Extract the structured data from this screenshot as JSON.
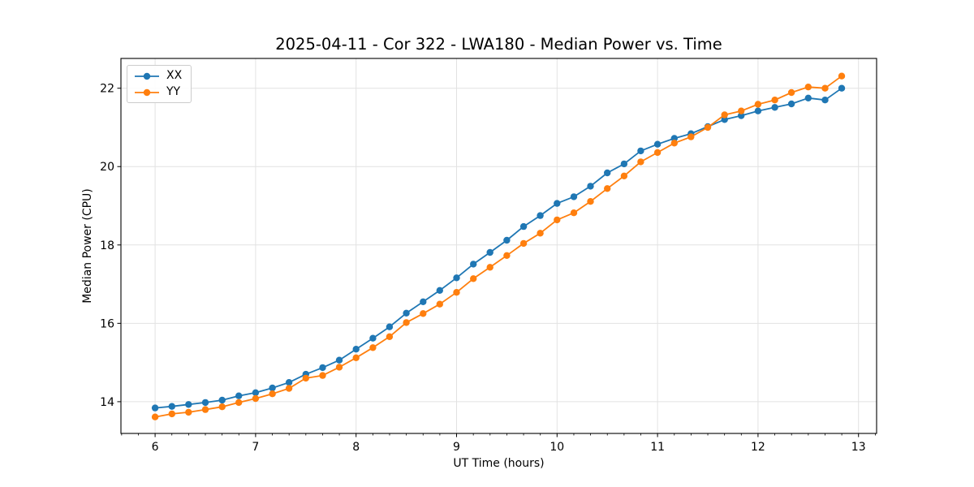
{
  "chart_data": {
    "type": "line",
    "title": "2025-04-11 - Cor 322 - LWA180 - Median Power vs. Time",
    "xlabel": "UT Time (hours)",
    "ylabel": "Median Power (CPU)",
    "xlim": [
      5.66,
      13.18
    ],
    "ylim": [
      13.19,
      22.76
    ],
    "xticks": [
      6,
      7,
      8,
      9,
      10,
      11,
      12,
      13
    ],
    "yticks": [
      14,
      16,
      18,
      20,
      22
    ],
    "minor_xtick_step_hours": 0.16667,
    "grid": true,
    "grid_color": "#e2e2e2",
    "legend_position": "upper left",
    "x": [
      6.0,
      6.167,
      6.333,
      6.5,
      6.667,
      6.833,
      7.0,
      7.167,
      7.333,
      7.5,
      7.667,
      7.833,
      8.0,
      8.167,
      8.333,
      8.5,
      8.667,
      8.833,
      9.0,
      9.167,
      9.333,
      9.5,
      9.667,
      9.833,
      10.0,
      10.167,
      10.333,
      10.5,
      10.667,
      10.833,
      11.0,
      11.167,
      11.333,
      11.5,
      11.667,
      11.833,
      12.0,
      12.167,
      12.333,
      12.5,
      12.667,
      12.833
    ],
    "series": [
      {
        "name": "XX",
        "color": "#1f77b4",
        "values": [
          13.84,
          13.88,
          13.93,
          13.98,
          14.04,
          14.15,
          14.23,
          14.35,
          14.49,
          14.7,
          14.87,
          15.06,
          15.34,
          15.62,
          15.91,
          16.26,
          16.55,
          16.84,
          17.16,
          17.51,
          17.81,
          18.12,
          18.47,
          18.75,
          19.06,
          19.23,
          19.5,
          19.84,
          20.07,
          20.4,
          20.57,
          20.72,
          20.84,
          21.02,
          21.2,
          21.3,
          21.42,
          21.51,
          21.6,
          21.75,
          21.7,
          22.0
        ]
      },
      {
        "name": "YY",
        "color": "#ff7f0e",
        "values": [
          13.61,
          13.69,
          13.73,
          13.8,
          13.87,
          13.98,
          14.08,
          14.2,
          14.34,
          14.6,
          14.67,
          14.88,
          15.12,
          15.38,
          15.66,
          16.02,
          16.25,
          16.49,
          16.79,
          17.14,
          17.43,
          17.73,
          18.04,
          18.3,
          18.64,
          18.82,
          19.11,
          19.44,
          19.76,
          20.12,
          20.36,
          20.6,
          20.76,
          21.0,
          21.32,
          21.42,
          21.59,
          21.7,
          21.89,
          22.03,
          22.0,
          22.31
        ]
      }
    ]
  }
}
